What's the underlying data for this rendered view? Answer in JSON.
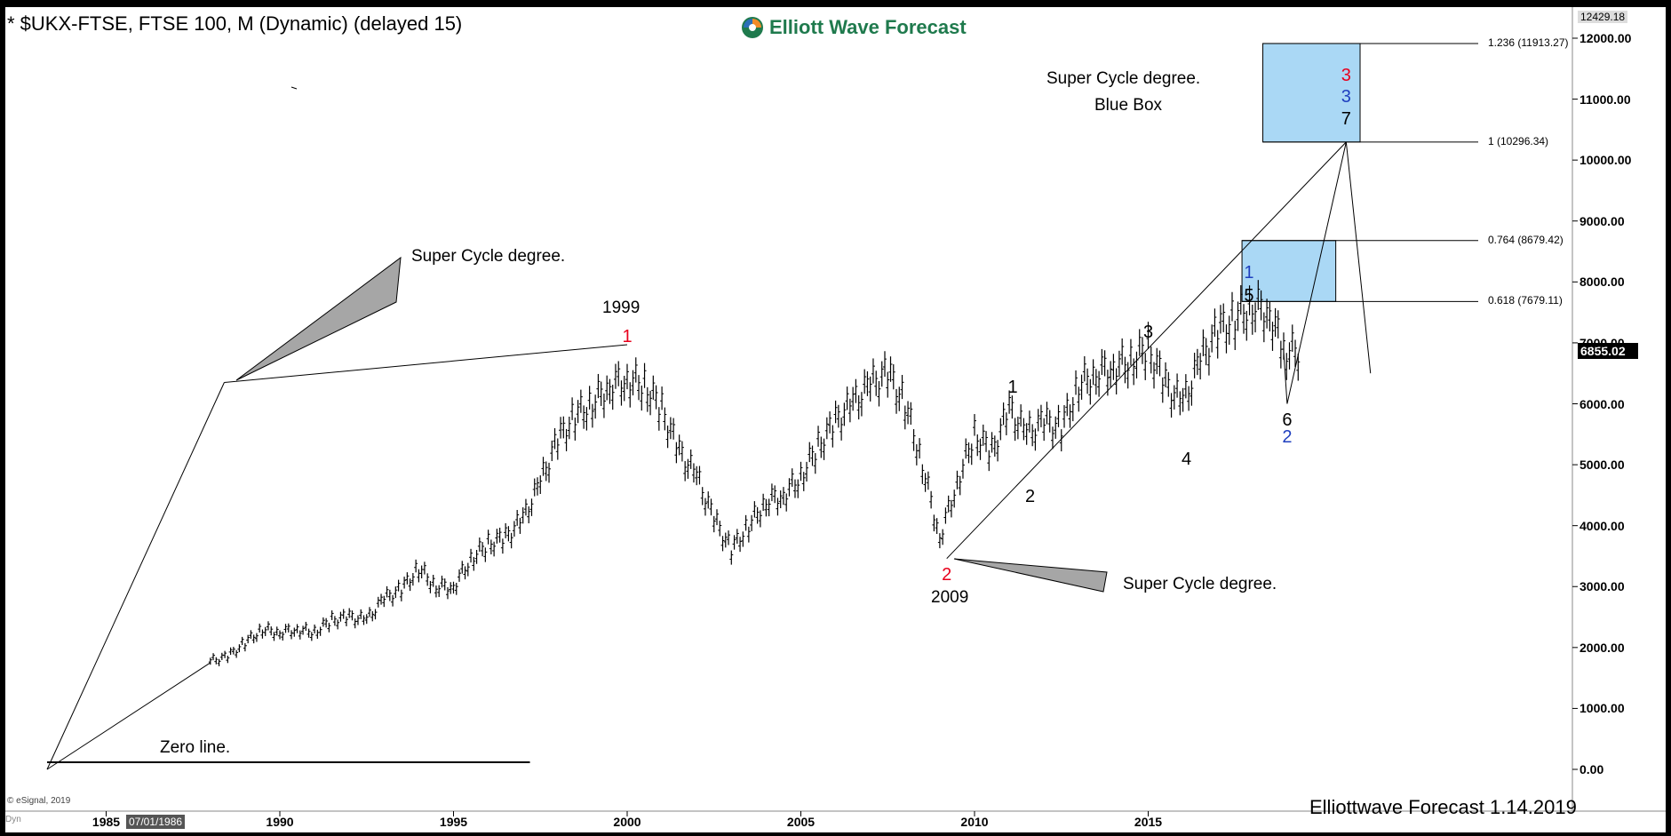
{
  "header": {
    "title": "* $UKX-FTSE, FTSE 100, M (Dynamic) (delayed 15)",
    "logo_text": "Elliott Wave Forecast",
    "copyright": "© eSignal, 2019",
    "footer_stamp": "Elliottwave Forecast 1.14.2019",
    "dyn_tag": "Dyn",
    "cursor_date": "07/01/1986",
    "top_price": "12429.18",
    "last_price": "6855.02"
  },
  "annotations": {
    "super_cycle_blue_box_line1": "Super Cycle  degree.",
    "super_cycle_blue_box_line2": "Blue Box",
    "super_cycle_upper": "Super Cycle  degree.",
    "super_cycle_lower": "Super Cycle  degree.",
    "zero_line": "Zero line.",
    "year_1999": "1999",
    "year_2009": "2009"
  },
  "fib_levels": [
    {
      "label": "1.236 (11913.27)",
      "value": 11913.27
    },
    {
      "label": "1 (10296.34)",
      "value": 10296.34
    },
    {
      "label": "0.764 (8679.42)",
      "value": 8679.42
    },
    {
      "label": "0.618 (7679.11)",
      "value": 7679.11
    }
  ],
  "wave_labels": [
    {
      "text": "1",
      "color": "#e8001c",
      "x": 2000.0,
      "y": 7080
    },
    {
      "text": "2",
      "color": "#e8001c",
      "x": 2009.2,
      "y": 3180
    },
    {
      "text": "1",
      "color": "#000000",
      "x": 2011.1,
      "y": 6260
    },
    {
      "text": "2",
      "color": "#000000",
      "x": 2011.6,
      "y": 4460
    },
    {
      "text": "3",
      "color": "#000000",
      "x": 2015.0,
      "y": 7160
    },
    {
      "text": "4",
      "color": "#000000",
      "x": 2016.1,
      "y": 5080
    },
    {
      "text": "5",
      "color": "#000000",
      "x": 2017.9,
      "y": 7760
    },
    {
      "text": "1",
      "color": "#1f3fbf",
      "x": 2017.9,
      "y": 8140
    },
    {
      "text": "6",
      "color": "#000000",
      "x": 2019.0,
      "y": 5720
    },
    {
      "text": "2",
      "color": "#1f3fbf",
      "x": 2019.0,
      "y": 5440
    },
    {
      "text": "3",
      "color": "#e8001c",
      "x": 2020.7,
      "y": 11380
    },
    {
      "text": "3",
      "color": "#1f3fbf",
      "x": 2020.7,
      "y": 11020
    },
    {
      "text": "7",
      "color": "#000000",
      "x": 2020.7,
      "y": 10660
    }
  ],
  "chart_data": {
    "type": "bar",
    "title": "* $UKX-FTSE, FTSE 100, M (Dynamic) (delayed 15)",
    "xlabel": "",
    "ylabel": "",
    "x_tick_labels": [
      "1985",
      "1990",
      "1995",
      "2000",
      "2005",
      "2010",
      "2015"
    ],
    "x_tick_values": [
      1985,
      1990,
      1995,
      2000,
      2005,
      2010,
      2015
    ],
    "y_tick_labels": [
      "0.00",
      "1000.00",
      "2000.00",
      "3000.00",
      "4000.00",
      "5000.00",
      "6000.00",
      "7000.00",
      "8000.00",
      "9000.00",
      "10000.00",
      "11000.00",
      "12000.00"
    ],
    "y_tick_values": [
      0,
      1000,
      2000,
      3000,
      4000,
      5000,
      6000,
      7000,
      8000,
      9000,
      10000,
      11000,
      12000
    ],
    "xlim": [
      1983.0,
      2028.0
    ],
    "ylim": [
      0,
      12420
    ],
    "series": [
      {
        "x": [
          1988.0,
          1988.5,
          1989.0,
          1989.5,
          1990.0,
          1990.5,
          1991.0,
          1991.5,
          1992.0,
          1992.5,
          1993.0,
          1993.5,
          1994.0,
          1994.5,
          1995.0,
          1995.5,
          1996.0,
          1996.5,
          1997.0,
          1997.5,
          1998.0,
          1998.5,
          1999.0,
          1999.5,
          2000.0,
          2000.5,
          2001.0,
          2001.5,
          2002.0,
          2002.5,
          2003.0,
          2003.5,
          2004.0,
          2004.5,
          2005.0,
          2005.5,
          2006.0,
          2006.5,
          2007.0,
          2007.5,
          2008.0,
          2008.5,
          2009.0,
          2009.5,
          2010.0,
          2010.5,
          2011.0,
          2011.5,
          2012.0,
          2012.5,
          2013.0,
          2013.5,
          2014.0,
          2014.5,
          2015.0,
          2015.5,
          2016.0,
          2016.5,
          2017.0,
          2017.5,
          2018.0,
          2018.5,
          2018.9
        ],
        "values": [
          1780,
          1850,
          2080,
          2300,
          2250,
          2300,
          2250,
          2450,
          2500,
          2450,
          2800,
          2950,
          3300,
          3000,
          3000,
          3450,
          3700,
          3800,
          4100,
          4700,
          5400,
          5800,
          6000,
          6300,
          6400,
          6300,
          5900,
          5200,
          4800,
          4100,
          3600,
          4000,
          4400,
          4500,
          4800,
          5300,
          5700,
          6000,
          6300,
          6500,
          6000,
          5000,
          3800,
          4700,
          5500,
          5200,
          5900,
          5500,
          5700,
          5600,
          6300,
          6500,
          6600,
          6700,
          6900,
          6300,
          6000,
          6700,
          7200,
          7400,
          7600,
          7500,
          6855
        ]
      }
    ],
    "projections": [
      {
        "x": [
          2018.9,
          2019.0,
          2020.7,
          2021.4
        ],
        "values": [
          6855,
          6000,
          10296,
          6500
        ]
      }
    ],
    "trendlines": [
      {
        "x": [
          1983.3,
          1988.0
        ],
        "values": [
          0,
          1750
        ]
      },
      {
        "x": [
          1983.3,
          1988.4
        ],
        "values": [
          0,
          6350
        ]
      },
      {
        "x": [
          1988.4,
          2000.0
        ],
        "values": [
          6350,
          6970
        ]
      },
      {
        "x": [
          2009.2,
          2020.7
        ],
        "values": [
          3460,
          10296
        ]
      }
    ],
    "zero_line": {
      "x": [
        1983.3,
        1997.2
      ],
      "value": 0
    },
    "boxes": [
      {
        "x": [
          2018.3,
          2021.1
        ],
        "y": [
          10296.34,
          11913.27
        ],
        "color": "#aad8f5"
      },
      {
        "x": [
          2017.7,
          2020.4
        ],
        "y": [
          7679.11,
          8679.42
        ],
        "color": "#aad8f5"
      }
    ]
  }
}
